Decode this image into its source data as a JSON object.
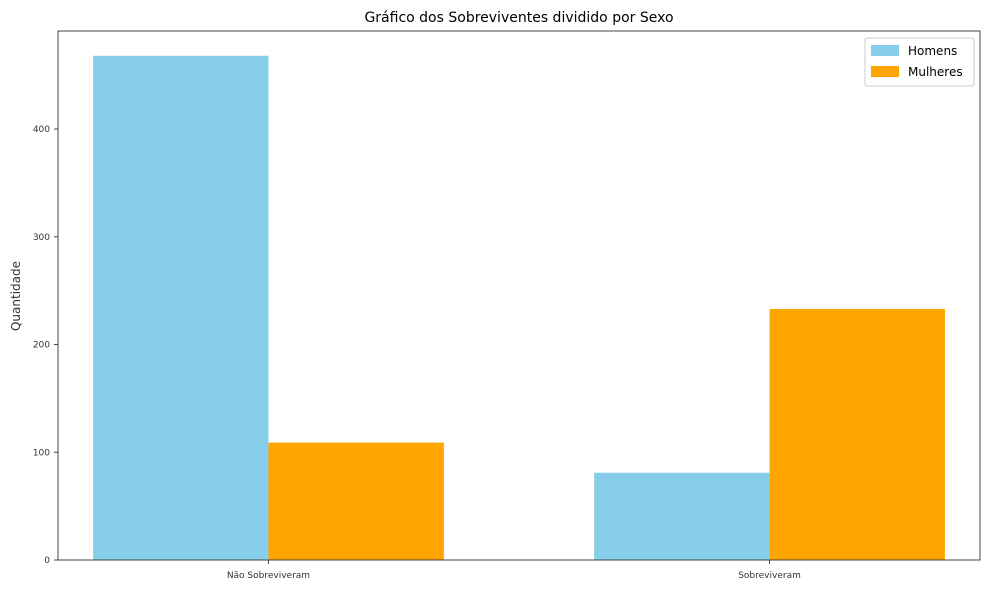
{
  "chart_data": {
    "type": "bar",
    "title": "Gráfico dos Sobreviventes dividido por Sexo",
    "xlabel": "",
    "ylabel": "Quantidade",
    "categories": [
      "Não Sobreviveram",
      "Sobreviveram"
    ],
    "series": [
      {
        "name": "Homens",
        "values": [
          468,
          81
        ],
        "color": "#87CEEB"
      },
      {
        "name": "Mulheres",
        "values": [
          109,
          233
        ],
        "color": "#FFA500"
      }
    ],
    "ylim": [
      0,
      491
    ],
    "yticks": [
      0,
      100,
      200,
      300,
      400
    ],
    "grid": false,
    "legend_position": "top-right"
  }
}
